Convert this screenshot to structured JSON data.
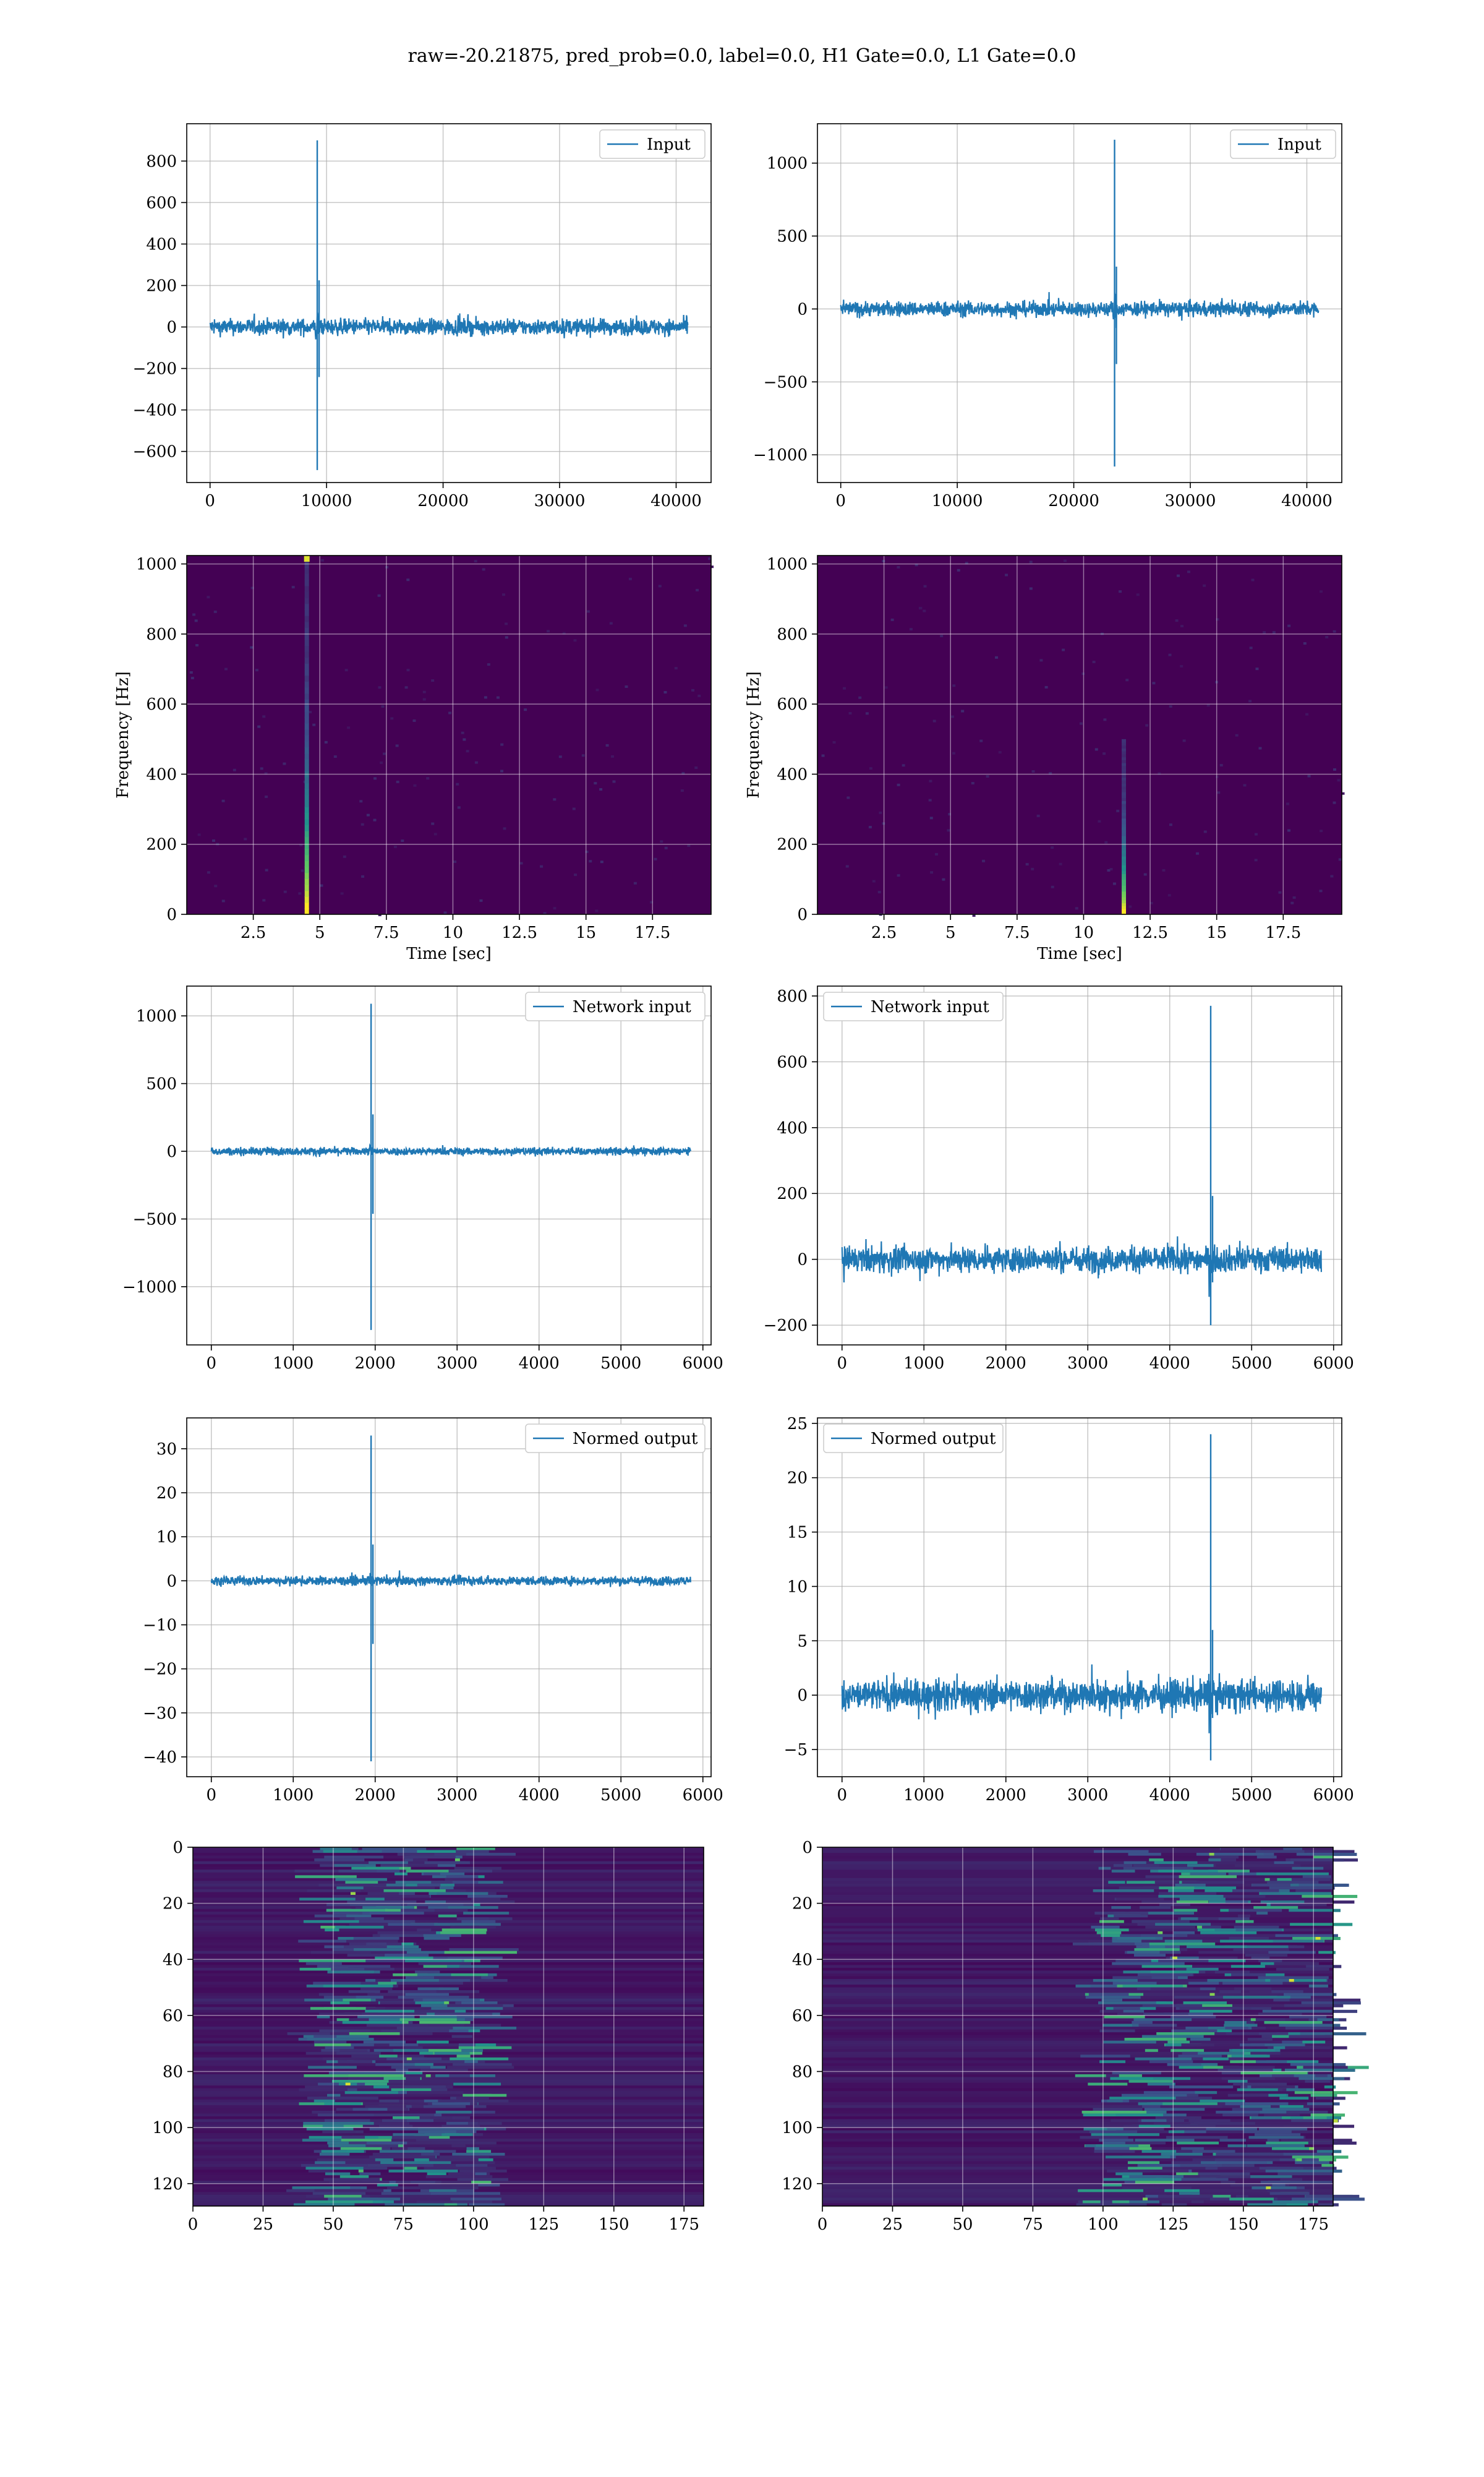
{
  "title": "raw=-20.21875, pred_prob=0.0, label=0.0, H1 Gate=0.0, L1 Gate=0.0",
  "colors": {
    "line": "#1f77b4",
    "grid": "#b0b0b0",
    "viridis_dark": "#440154",
    "viridis_mid": "#21918c",
    "viridis_bright": "#fde725"
  },
  "chart_data": [
    {
      "id": "input-left",
      "type": "line",
      "legend": "Input",
      "legend_pos": "upper-right",
      "xlim": [
        -2000,
        43000
      ],
      "ylim": [
        -750,
        980
      ],
      "xticks": [
        0,
        10000,
        20000,
        30000,
        40000
      ],
      "yticks": [
        -600,
        -400,
        -200,
        0,
        200,
        400,
        600,
        800
      ],
      "x_range": [
        0,
        41000
      ],
      "noise_amplitude": 60,
      "spikes": [
        {
          "x": 9200,
          "top": 900,
          "bottom": -690
        }
      ]
    },
    {
      "id": "input-right",
      "type": "line",
      "legend": "Input",
      "legend_pos": "upper-right",
      "xlim": [
        -2000,
        43000
      ],
      "ylim": [
        -1190,
        1270
      ],
      "xticks": [
        0,
        10000,
        20000,
        30000,
        40000
      ],
      "yticks": [
        -1000,
        -500,
        0,
        500,
        1000
      ],
      "x_range": [
        0,
        41000
      ],
      "noise_amplitude": 80,
      "spikes": [
        {
          "x": 23500,
          "top": 1160,
          "bottom": -1080
        }
      ]
    },
    {
      "id": "spectrogram-left",
      "type": "heatmap",
      "xlabel": "Time [sec]",
      "ylabel": "Frequency [Hz]",
      "xlim": [
        0,
        19.7
      ],
      "ylim": [
        0,
        1024
      ],
      "xticks": [
        2.5,
        5.0,
        7.5,
        10.0,
        12.5,
        15.0,
        17.5
      ],
      "yticks": [
        0,
        200,
        400,
        600,
        800,
        1000
      ],
      "burst_time": 4.5,
      "burst_freq_max": 1024
    },
    {
      "id": "spectrogram-right",
      "type": "heatmap",
      "xlabel": "Time [sec]",
      "ylabel": "Frequency [Hz]",
      "xlim": [
        0,
        19.7
      ],
      "ylim": [
        0,
        1024
      ],
      "xticks": [
        2.5,
        5.0,
        7.5,
        10.0,
        12.5,
        15.0,
        17.5
      ],
      "yticks": [
        0,
        200,
        400,
        600,
        800,
        1000
      ],
      "burst_time": 11.5,
      "burst_freq_max": 500
    },
    {
      "id": "network-input-left",
      "type": "line",
      "legend": "Network input",
      "legend_pos": "upper-right",
      "xlim": [
        -300,
        6100
      ],
      "ylim": [
        -1430,
        1220
      ],
      "xticks": [
        0,
        1000,
        2000,
        3000,
        4000,
        5000,
        6000
      ],
      "yticks": [
        -1000,
        -500,
        0,
        500,
        1000
      ],
      "x_range": [
        0,
        5850
      ],
      "noise_amplitude": 45,
      "spikes": [
        {
          "x": 1950,
          "top": 1090,
          "bottom": -1320
        }
      ]
    },
    {
      "id": "network-input-right",
      "type": "line",
      "legend": "Network input",
      "legend_pos": "upper-left",
      "xlim": [
        -300,
        6100
      ],
      "ylim": [
        -260,
        830
      ],
      "xticks": [
        0,
        1000,
        2000,
        3000,
        4000,
        5000,
        6000
      ],
      "yticks": [
        -200,
        0,
        200,
        400,
        600,
        800
      ],
      "x_range": [
        0,
        5850
      ],
      "noise_amplitude": 60,
      "spikes": [
        {
          "x": 4500,
          "top": 770,
          "bottom": -200
        }
      ]
    },
    {
      "id": "normed-output-left",
      "type": "line",
      "legend": "Normed output",
      "legend_pos": "upper-right",
      "xlim": [
        -300,
        6100
      ],
      "ylim": [
        -44.5,
        37
      ],
      "xticks": [
        0,
        1000,
        2000,
        3000,
        4000,
        5000,
        6000
      ],
      "yticks": [
        -40,
        -30,
        -20,
        -10,
        0,
        10,
        20,
        30
      ],
      "x_range": [
        0,
        5850
      ],
      "noise_amplitude": 1.6,
      "spikes": [
        {
          "x": 1950,
          "top": 33,
          "bottom": -41
        }
      ]
    },
    {
      "id": "normed-output-right",
      "type": "line",
      "legend": "Normed output",
      "legend_pos": "upper-left",
      "xlim": [
        -300,
        6100
      ],
      "ylim": [
        -7.5,
        25.5
      ],
      "xticks": [
        0,
        1000,
        2000,
        3000,
        4000,
        5000,
        6000
      ],
      "yticks": [
        -5,
        0,
        5,
        10,
        15,
        20,
        25
      ],
      "x_range": [
        0,
        5850
      ],
      "noise_amplitude": 2.2,
      "spikes": [
        {
          "x": 4500,
          "top": 24,
          "bottom": -6
        }
      ]
    },
    {
      "id": "feature-map-left",
      "type": "heatmap",
      "xlim": [
        0,
        182
      ],
      "ylim": [
        128,
        0
      ],
      "xticks": [
        0,
        25,
        50,
        75,
        100,
        125,
        150,
        175
      ],
      "yticks": [
        0,
        20,
        40,
        60,
        80,
        100,
        120
      ],
      "active_region": [
        45,
        105
      ]
    },
    {
      "id": "feature-map-right",
      "type": "heatmap",
      "xlim": [
        0,
        182
      ],
      "ylim": [
        128,
        0
      ],
      "xticks": [
        0,
        25,
        50,
        75,
        100,
        125,
        150,
        175
      ],
      "yticks": [
        0,
        20,
        40,
        60,
        80,
        100,
        120
      ],
      "active_region": [
        100,
        182
      ]
    }
  ]
}
